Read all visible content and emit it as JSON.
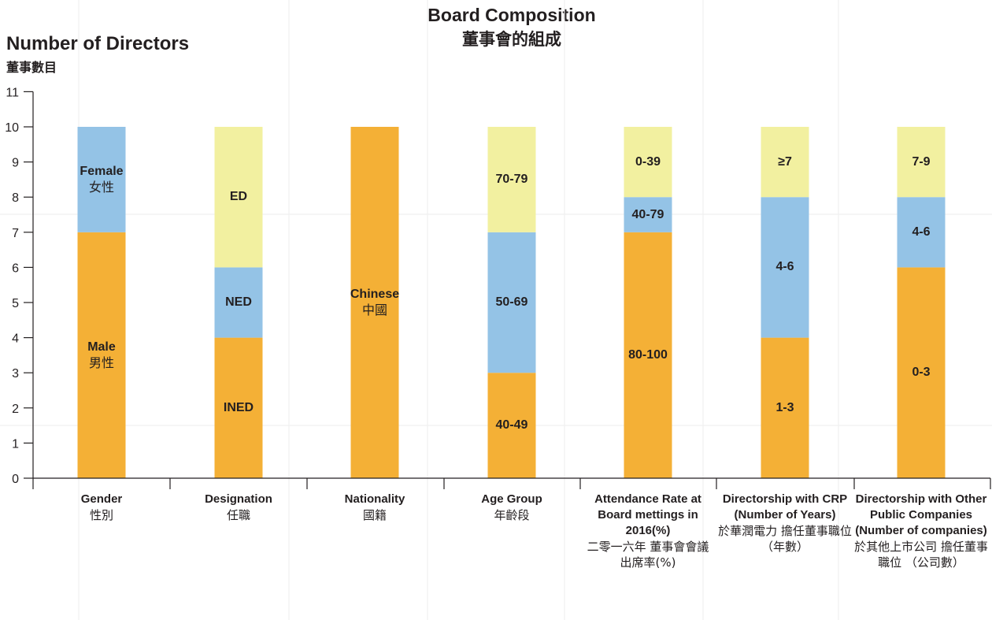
{
  "chart_data": {
    "type": "bar",
    "stacked": true,
    "title": "Board Composition",
    "title_zh": "董事會的組成",
    "ylabel": "Number of Directors",
    "ylabel_zh": "董事數目",
    "ylim": [
      0,
      11
    ],
    "yticks": [
      "0",
      "1",
      "2",
      "3",
      "4",
      "5",
      "6",
      "7",
      "8",
      "9",
      "10",
      "11"
    ],
    "grid": true,
    "colors": {
      "orange": "#f4b036",
      "blue": "#94c3e6",
      "yellow": "#f2f0a0"
    },
    "categories": [
      {
        "label": "Gender",
        "label_zh": "性別",
        "segments": [
          {
            "value": 7,
            "label": "Male",
            "label_zh": "男性",
            "color": "orange"
          },
          {
            "value": 3,
            "label": "Female",
            "label_zh": "女性",
            "color": "blue"
          }
        ]
      },
      {
        "label": "Designation",
        "label_zh": "任職",
        "segments": [
          {
            "value": 4,
            "label": "INED",
            "label_zh": "",
            "color": "orange"
          },
          {
            "value": 2,
            "label": "NED",
            "label_zh": "",
            "color": "blue"
          },
          {
            "value": 4,
            "label": "ED",
            "label_zh": "",
            "color": "yellow"
          }
        ]
      },
      {
        "label": "Nationality",
        "label_zh": "國籍",
        "segments": [
          {
            "value": 10,
            "label": "Chinese",
            "label_zh": "中國",
            "color": "orange"
          }
        ]
      },
      {
        "label": "Age Group",
        "label_zh": "年齡段",
        "segments": [
          {
            "value": 3,
            "label": "40-49",
            "label_zh": "",
            "color": "orange"
          },
          {
            "value": 4,
            "label": "50-69",
            "label_zh": "",
            "color": "blue"
          },
          {
            "value": 3,
            "label": "70-79",
            "label_zh": "",
            "color": "yellow"
          }
        ]
      },
      {
        "label": "Attendance Rate at Board mettings in 2016(%)",
        "label_zh": "二零一六年 董事會會議 出席率(%)",
        "segments": [
          {
            "value": 7,
            "label": "80-100",
            "label_zh": "",
            "color": "orange"
          },
          {
            "value": 1,
            "label": "40-79",
            "label_zh": "",
            "color": "blue"
          },
          {
            "value": 2,
            "label": "0-39",
            "label_zh": "",
            "color": "yellow"
          }
        ]
      },
      {
        "label": "Directorship with CRP (Number of Years)",
        "label_zh": "於華潤電力 擔任董事職位 （年數）",
        "segments": [
          {
            "value": 4,
            "label": "1-3",
            "label_zh": "",
            "color": "orange"
          },
          {
            "value": 4,
            "label": "4-6",
            "label_zh": "",
            "color": "blue"
          },
          {
            "value": 2,
            "label": "≥7",
            "label_zh": "",
            "color": "yellow"
          }
        ]
      },
      {
        "label": "Directorship with Other Public Companies (Number of companies)",
        "label_zh": "於其他上市公司 擔任董事職位 （公司數）",
        "segments": [
          {
            "value": 6,
            "label": "0-3",
            "label_zh": "",
            "color": "orange"
          },
          {
            "value": 2,
            "label": "4-6",
            "label_zh": "",
            "color": "blue"
          },
          {
            "value": 2,
            "label": "7-9",
            "label_zh": "",
            "color": "yellow"
          }
        ]
      }
    ]
  }
}
